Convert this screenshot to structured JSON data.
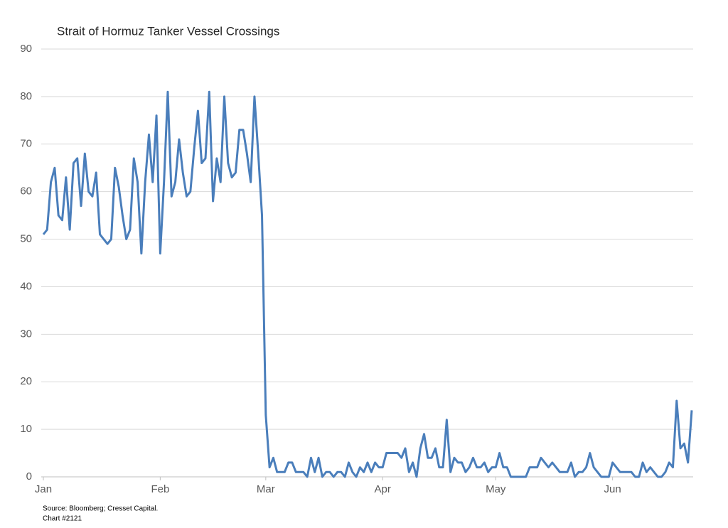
{
  "chart_data": {
    "type": "line",
    "title": "Strait of Hormuz Tanker Vessel Crossings",
    "source": "Source: Bloomberg; Cresset Capital.",
    "note": "Chart #2121",
    "color": "#4a7ebb",
    "grid": true,
    "values": [
      51,
      52,
      62,
      65,
      55,
      54,
      63,
      52,
      66,
      67,
      57,
      68,
      60,
      59,
      64,
      51,
      50,
      49,
      50,
      65,
      61,
      55,
      50,
      52,
      67,
      62,
      47,
      62,
      72,
      62,
      76,
      47,
      62,
      81,
      59,
      62,
      71,
      64,
      59,
      60,
      69,
      77,
      66,
      67,
      81,
      58,
      67,
      62,
      80,
      66,
      63,
      64,
      73,
      73,
      68,
      62,
      80,
      68,
      55,
      13,
      2,
      4,
      1,
      1,
      1,
      3,
      3,
      1,
      1,
      1,
      0,
      4,
      1,
      4,
      0,
      1,
      1,
      0,
      1,
      1,
      0,
      3,
      1,
      0,
      2,
      1,
      3,
      1,
      3,
      2,
      2,
      5,
      5,
      5,
      5,
      4,
      6,
      1,
      3,
      0,
      6,
      9,
      4,
      4,
      6,
      2,
      2,
      12,
      1,
      4,
      3,
      3,
      1,
      2,
      4,
      2,
      2,
      3,
      1,
      2,
      2,
      5,
      2,
      2,
      0,
      0,
      0,
      0,
      0,
      2,
      2,
      2,
      4,
      3,
      2,
      3,
      2,
      1,
      1,
      1,
      3,
      0,
      1,
      1,
      2,
      5,
      2,
      1,
      0,
      0,
      0,
      3,
      2,
      1,
      1,
      1,
      1,
      0,
      0,
      3,
      1,
      2,
      1,
      0,
      0,
      1,
      3,
      2,
      16,
      6,
      7,
      3,
      14
    ],
    "xlim": [
      0,
      172
    ],
    "xticks": [
      {
        "value": 0,
        "label": "Jan"
      },
      {
        "value": 31,
        "label": "Feb"
      },
      {
        "value": 59,
        "label": "Mar"
      },
      {
        "value": 90,
        "label": "Apr"
      },
      {
        "value": 120,
        "label": "May"
      },
      {
        "value": 151,
        "label": "Jun"
      }
    ],
    "ylim": [
      0,
      90
    ],
    "yticks": [
      0,
      10,
      20,
      30,
      40,
      50,
      60,
      70,
      80,
      90
    ]
  }
}
